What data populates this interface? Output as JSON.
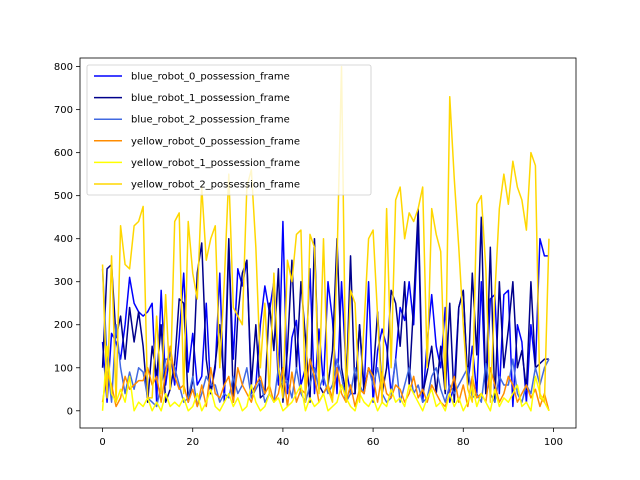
{
  "chart_data": {
    "type": "line",
    "title": "",
    "xlabel": "",
    "ylabel": "",
    "xlim": [
      -5,
      105
    ],
    "ylim": [
      -40,
      820
    ],
    "xticks": [
      0,
      20,
      40,
      60,
      80,
      100
    ],
    "yticks": [
      0,
      100,
      200,
      300,
      400,
      500,
      600,
      700,
      800
    ],
    "legend_position": "top-left",
    "grid": false,
    "x": [
      0,
      1,
      2,
      3,
      4,
      5,
      6,
      7,
      8,
      9,
      10,
      11,
      12,
      13,
      14,
      15,
      16,
      17,
      18,
      19,
      20,
      21,
      22,
      23,
      24,
      25,
      26,
      27,
      28,
      29,
      30,
      31,
      32,
      33,
      34,
      35,
      36,
      37,
      38,
      39,
      40,
      41,
      42,
      43,
      44,
      45,
      46,
      47,
      48,
      49,
      50,
      51,
      52,
      53,
      54,
      55,
      56,
      57,
      58,
      59,
      60,
      61,
      62,
      63,
      64,
      65,
      66,
      67,
      68,
      69,
      70,
      71,
      72,
      73,
      74,
      75,
      76,
      77,
      78,
      79,
      80,
      81,
      82,
      83,
      84,
      85,
      86,
      87,
      88,
      89,
      90,
      91,
      92,
      93,
      94,
      95,
      96,
      97,
      98,
      99
    ],
    "series": [
      {
        "name": "blue_robot_0_possession_frame",
        "color": "#0000ff",
        "values": [
          160,
          20,
          180,
          160,
          120,
          200,
          310,
          250,
          230,
          220,
          230,
          250,
          20,
          280,
          60,
          140,
          60,
          170,
          320,
          90,
          180,
          60,
          80,
          250,
          40,
          100,
          320,
          20,
          380,
          120,
          330,
          290,
          350,
          40,
          60,
          200,
          290,
          230,
          300,
          60,
          440,
          40,
          170,
          210,
          60,
          100,
          330,
          40,
          190,
          60,
          300,
          210,
          40,
          300,
          100,
          40,
          40,
          200,
          40,
          300,
          20,
          140,
          190,
          150,
          40,
          120,
          240,
          210,
          300,
          200,
          440,
          20,
          160,
          270,
          150,
          100,
          240,
          20,
          60,
          240,
          280,
          60,
          150,
          40,
          300,
          40,
          260,
          270,
          40,
          270,
          280,
          10,
          200,
          160,
          20,
          200,
          100,
          400,
          360,
          360
        ]
      },
      {
        "name": "blue_robot_1_possession_frame",
        "color": "#00008b",
        "values": [
          100,
          330,
          340,
          170,
          220,
          120,
          240,
          160,
          230,
          150,
          20,
          150,
          80,
          200,
          20,
          50,
          110,
          260,
          250,
          20,
          70,
          320,
          390,
          120,
          40,
          110,
          200,
          60,
          400,
          20,
          220,
          320,
          350,
          60,
          200,
          30,
          40,
          250,
          140,
          330,
          20,
          140,
          350,
          100,
          300,
          170,
          20,
          400,
          60,
          40,
          60,
          140,
          400,
          100,
          40,
          360,
          40,
          200,
          50,
          100,
          80,
          230,
          40,
          100,
          280,
          250,
          150,
          300,
          60,
          250,
          470,
          40,
          90,
          150,
          40,
          150,
          40,
          250,
          20,
          240,
          280,
          60,
          320,
          130,
          450,
          40,
          380,
          20,
          300,
          100,
          190,
          300,
          100,
          140,
          50,
          300,
          100,
          110,
          120,
          120
        ]
      },
      {
        "name": "blue_robot_2_possession_frame",
        "color": "#4169e1",
        "values": [
          330,
          120,
          20,
          200,
          100,
          40,
          90,
          50,
          100,
          90,
          30,
          20,
          10,
          60,
          120,
          120,
          100,
          60,
          20,
          30,
          80,
          10,
          40,
          80,
          60,
          60,
          20,
          40,
          30,
          80,
          40,
          60,
          100,
          30,
          50,
          70,
          20,
          40,
          20,
          100,
          60,
          70,
          30,
          100,
          40,
          20,
          60,
          100,
          50,
          80,
          40,
          60,
          120,
          80,
          20,
          40,
          100,
          60,
          40,
          100,
          60,
          100,
          40,
          20,
          30,
          120,
          20,
          60,
          100,
          40,
          60,
          20,
          30,
          80,
          100,
          50,
          20,
          60,
          40,
          60,
          80,
          100,
          30,
          40,
          20,
          110,
          40,
          20,
          80,
          60,
          60,
          120,
          40,
          20,
          60,
          40,
          100,
          60,
          100,
          120
        ]
      },
      {
        "name": "yellow_robot_0_possession_frame",
        "color": "#ff8c00",
        "values": [
          20,
          90,
          60,
          10,
          30,
          80,
          50,
          60,
          70,
          70,
          100,
          60,
          80,
          20,
          90,
          150,
          80,
          50,
          60,
          20,
          50,
          10,
          60,
          10,
          100,
          40,
          30,
          60,
          80,
          20,
          100,
          60,
          40,
          20,
          60,
          80,
          40,
          60,
          20,
          40,
          100,
          10,
          90,
          20,
          50,
          40,
          120,
          80,
          20,
          40,
          60,
          30,
          100,
          40,
          20,
          60,
          10,
          50,
          40,
          100,
          80,
          20,
          90,
          40,
          30,
          60,
          50,
          20,
          40,
          80,
          30,
          50,
          20,
          60,
          40,
          20,
          10,
          40,
          80,
          20,
          60,
          10,
          80,
          30,
          40,
          20,
          100,
          60,
          20,
          40,
          80,
          60,
          20,
          40,
          60,
          30,
          50,
          10,
          40,
          0
        ]
      },
      {
        "name": "yellow_robot_1_possession_frame",
        "color": "#ffff00",
        "values": [
          0,
          150,
          40,
          20,
          50,
          20,
          80,
          0,
          20,
          10,
          30,
          0,
          20,
          0,
          40,
          10,
          20,
          10,
          30,
          0,
          10,
          40,
          0,
          20,
          50,
          10,
          0,
          20,
          40,
          10,
          30,
          0,
          10,
          60,
          20,
          0,
          10,
          40,
          20,
          30,
          0,
          10,
          20,
          40,
          60,
          0,
          30,
          10,
          20,
          40,
          0,
          10,
          20,
          60,
          30,
          10,
          0,
          40,
          20,
          10,
          30,
          0,
          20,
          10,
          50,
          20,
          30,
          10,
          60,
          40,
          20,
          0,
          30,
          50,
          10,
          20,
          0,
          40,
          10,
          30,
          0,
          20,
          60,
          10,
          40,
          20,
          0,
          50,
          10,
          30,
          20,
          40,
          60,
          10,
          20,
          0,
          80,
          40,
          20,
          0
        ]
      },
      {
        "name": "yellow_robot_2_possession_frame",
        "color": "#ffd700",
        "values": [
          340,
          30,
          360,
          20,
          430,
          340,
          330,
          430,
          440,
          475,
          30,
          30,
          220,
          40,
          270,
          50,
          440,
          460,
          40,
          440,
          320,
          260,
          520,
          350,
          400,
          430,
          100,
          300,
          550,
          240,
          220,
          200,
          520,
          560,
          380,
          100,
          250,
          40,
          320,
          100,
          30,
          350,
          300,
          410,
          420,
          20,
          410,
          380,
          40,
          400,
          50,
          20,
          350,
          800,
          20,
          280,
          250,
          20,
          200,
          400,
          420,
          220,
          20,
          470,
          100,
          490,
          520,
          400,
          460,
          440,
          470,
          520,
          100,
          470,
          410,
          370,
          50,
          730,
          540,
          380,
          200,
          50,
          20,
          480,
          500,
          330,
          20,
          270,
          470,
          550,
          480,
          580,
          520,
          490,
          420,
          600,
          570,
          30,
          20,
          400
        ]
      }
    ]
  }
}
